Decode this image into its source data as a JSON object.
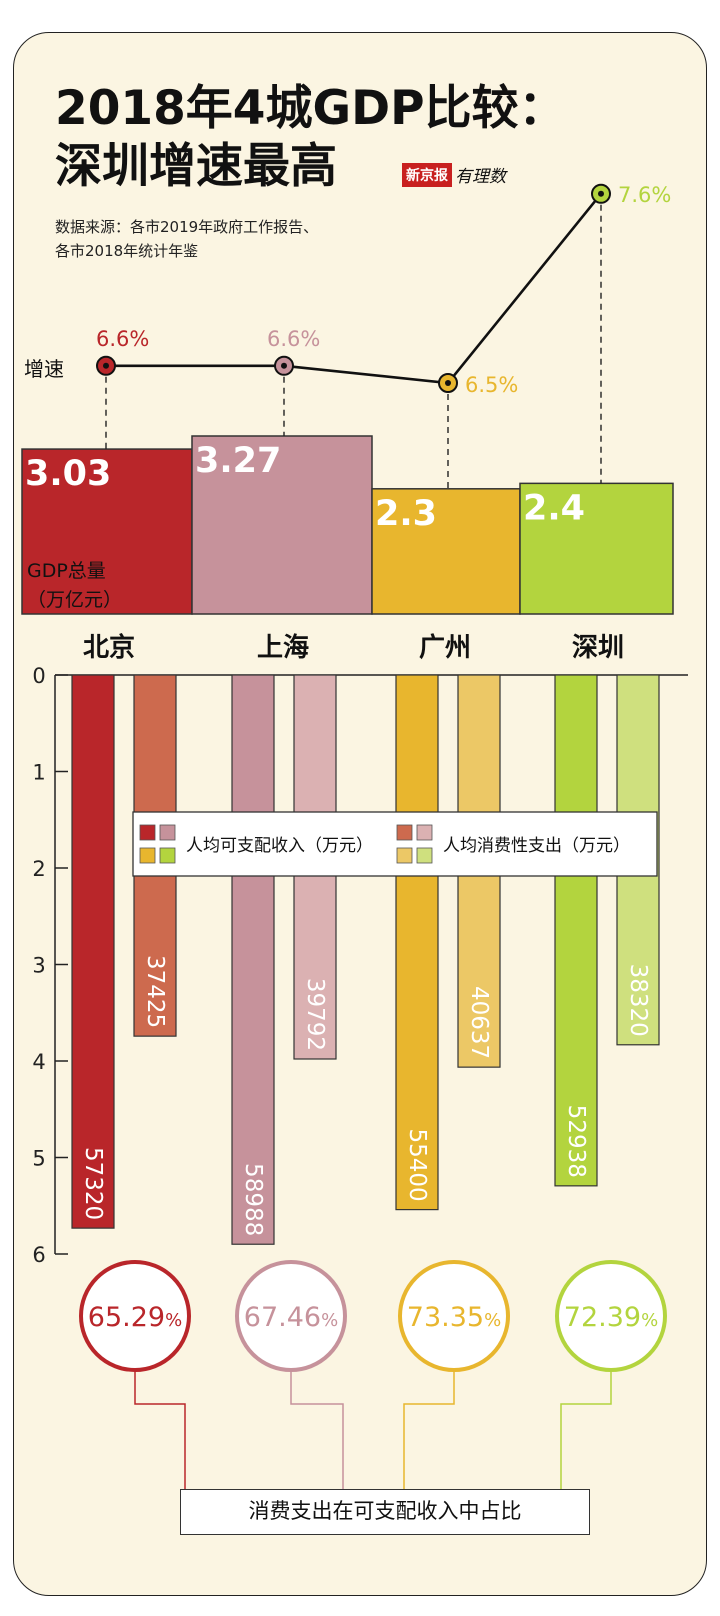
{
  "header": {
    "title_line1": "2018年4城GDP比较：",
    "title_line2": "深圳增速最高",
    "logo_box": "新京报",
    "logo_script": "有理数",
    "source_line1": "数据来源：各市2019年政府工作报告、",
    "source_line2": "各市2018年统计年鉴"
  },
  "labels": {
    "growth": "增速",
    "gdp_line1": "GDP总量",
    "gdp_line2": "（万亿元）",
    "footer": "消费支出在可支配收入中占比",
    "legend_income": "人均可支配收入（万元）",
    "legend_consumption": "人均消费性支出（万元）"
  },
  "chart_data": {
    "type": "bar",
    "categories": [
      "北京",
      "上海",
      "广州",
      "深圳"
    ],
    "colors": {
      "income": [
        "#b9262a",
        "#c6929b",
        "#e8b62e",
        "#b3d43e"
      ],
      "consumption": [
        "#cd6a4e",
        "#dbb1b2",
        "#ecc866",
        "#cfe07e"
      ]
    },
    "growth_rate": {
      "values": [
        6.6,
        6.6,
        6.5,
        7.6
      ],
      "labels": [
        "6.6%",
        "6.6%",
        "6.5%",
        "7.6%"
      ]
    },
    "gdp": {
      "values": [
        3.03,
        3.27,
        2.3,
        2.4
      ],
      "labels": [
        "3.03",
        "3.27",
        "2.3",
        "2.4"
      ]
    },
    "y_axis": {
      "ticks": [
        "0",
        "1",
        "2",
        "3",
        "4",
        "5",
        "6"
      ],
      "ylim": [
        0,
        6
      ],
      "direction": "downward"
    },
    "income": {
      "values": [
        57320,
        58988,
        55400,
        52938
      ],
      "labels": [
        "57320",
        "58988",
        "55400",
        "52938"
      ]
    },
    "consumption": {
      "values": [
        37425,
        39792,
        40637,
        38320
      ],
      "labels": [
        "37425",
        "39792",
        "40637",
        "38320"
      ]
    },
    "ratio": {
      "values": [
        65.29,
        67.46,
        73.35,
        72.39
      ],
      "labels": [
        "65.29",
        "67.46",
        "73.35",
        "72.39"
      ],
      "unit": "%"
    }
  }
}
